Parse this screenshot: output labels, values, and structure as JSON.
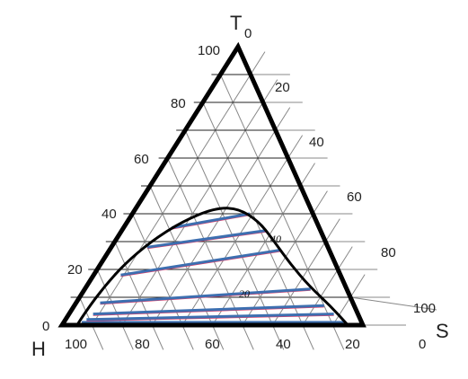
{
  "diagram": {
    "type": "ternary-phase-diagram",
    "vertices": {
      "top": "T",
      "bottom_left": "H",
      "bottom_right": "S"
    },
    "tick_values": [
      0,
      20,
      40,
      60,
      80,
      100
    ],
    "left_axis_ticks": [
      "100",
      "80",
      "60",
      "40",
      "20",
      "0"
    ],
    "right_axis_ticks": [
      "0",
      "20",
      "40",
      "60",
      "80",
      "100"
    ],
    "bottom_axis_ticks": [
      "100",
      "80",
      "60",
      "40",
      "20",
      "0"
    ],
    "grid_divisions": 10,
    "annotations": [
      "40",
      "20"
    ],
    "colors": {
      "frame": "#000000",
      "grid": "#888888",
      "horizontal_grid": "#222222",
      "binodal": "#000000",
      "tie_line": "#3d6fb0",
      "tie_line_edge": "#e0406a"
    },
    "binodal_curve_ternary": [
      [
        0.95,
        0.0,
        0.05
      ],
      [
        0.9,
        0.05,
        0.05
      ],
      [
        0.8,
        0.14,
        0.06
      ],
      [
        0.7,
        0.22,
        0.08
      ],
      [
        0.58,
        0.3,
        0.12
      ],
      [
        0.45,
        0.37,
        0.18
      ],
      [
        0.32,
        0.42,
        0.26
      ],
      [
        0.24,
        0.42,
        0.34
      ],
      [
        0.19,
        0.37,
        0.44
      ],
      [
        0.17,
        0.3,
        0.53
      ],
      [
        0.15,
        0.22,
        0.63
      ],
      [
        0.12,
        0.14,
        0.74
      ],
      [
        0.08,
        0.07,
        0.85
      ],
      [
        0.05,
        0.0,
        0.95
      ]
    ],
    "tie_lines_ternary": [
      [
        [
          0.93,
          0.01,
          0.06
        ],
        [
          0.06,
          0.01,
          0.93
        ]
      ],
      [
        [
          0.91,
          0.02,
          0.07
        ],
        [
          0.08,
          0.04,
          0.88
        ]
      ],
      [
        [
          0.88,
          0.04,
          0.08
        ],
        [
          0.1,
          0.07,
          0.83
        ]
      ],
      [
        [
          0.84,
          0.08,
          0.08
        ],
        [
          0.12,
          0.13,
          0.75
        ]
      ],
      [
        [
          0.73,
          0.18,
          0.09
        ],
        [
          0.16,
          0.27,
          0.57
        ]
      ],
      [
        [
          0.6,
          0.28,
          0.12
        ],
        [
          0.18,
          0.34,
          0.48
        ]
      ],
      [
        [
          0.49,
          0.35,
          0.16
        ],
        [
          0.21,
          0.4,
          0.39
        ]
      ]
    ]
  }
}
